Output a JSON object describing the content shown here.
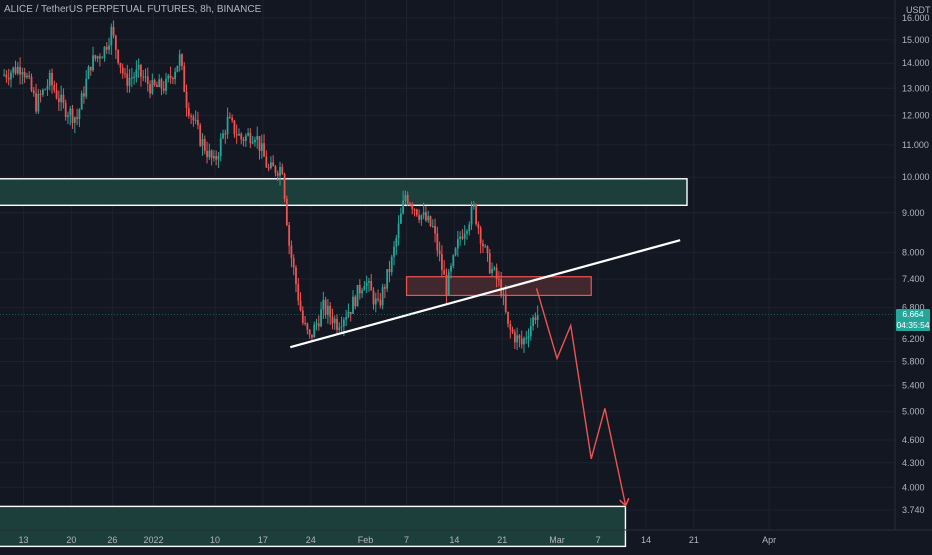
{
  "header": {
    "title": "ALICE / TetherUS PERPETUAL FUTURES, 8h, BINANCE",
    "currency": "USDT"
  },
  "last_price": {
    "value": "6.664",
    "countdown": "04:35:54",
    "level": 6.664
  },
  "colors": {
    "background": "#131722",
    "grid": "#1e222d",
    "up": "#26a69a",
    "down": "#ef5350",
    "zone_fill": "#1d3f3c",
    "zone_border": "#ffffff",
    "resistance_fill": "#4a2a30",
    "resistance_border": "#ef5350",
    "trendline": "#ffffff",
    "projection": "#ef5350"
  },
  "chart_data": {
    "type": "candlestick",
    "title": "ALICE / TetherUS PERPETUAL FUTURES, 8h, BINANCE",
    "y_scale": "log",
    "y_ticks": [
      "16.000",
      "15.000",
      "14.000",
      "13.000",
      "12.000",
      "11.000",
      "10.000",
      "9.000",
      "8.000",
      "7.400",
      "6.800",
      "6.200",
      "5.800",
      "5.400",
      "5.000",
      "4.600",
      "4.300",
      "4.000",
      "3.740"
    ],
    "x_ticks": [
      "13",
      "20",
      "26",
      "2022",
      "10",
      "17",
      "24",
      "Feb",
      "7",
      "14",
      "21",
      "Mar",
      "7",
      "14",
      "21",
      "Apr"
    ],
    "x_range": [
      "2021-12-10",
      "2022-04-04"
    ],
    "price_path": [
      [
        "2021-12-10",
        13.5
      ],
      [
        "2021-12-13",
        13.9
      ],
      [
        "2021-12-15",
        12.4
      ],
      [
        "2021-12-17",
        13.3
      ],
      [
        "2021-12-19",
        12.3
      ],
      [
        "2021-12-21",
        11.9
      ],
      [
        "2021-12-23",
        14.0
      ],
      [
        "2021-12-25",
        14.6
      ],
      [
        "2021-12-26",
        15.4
      ],
      [
        "2021-12-28",
        13.3
      ],
      [
        "2021-12-30",
        13.6
      ],
      [
        "2022-01-01",
        13.0
      ],
      [
        "2022-01-03",
        13.1
      ],
      [
        "2022-01-05",
        14.2
      ],
      [
        "2022-01-06",
        12.5
      ],
      [
        "2022-01-08",
        11.2
      ],
      [
        "2022-01-10",
        10.4
      ],
      [
        "2022-01-12",
        11.8
      ],
      [
        "2022-01-14",
        11.2
      ],
      [
        "2022-01-16",
        11.4
      ],
      [
        "2022-01-18",
        10.2
      ],
      [
        "2022-01-20",
        10.3
      ],
      [
        "2022-01-21",
        8.2
      ],
      [
        "2022-01-23",
        6.5
      ],
      [
        "2022-01-24",
        6.2
      ],
      [
        "2022-01-26",
        6.8
      ],
      [
        "2022-01-28",
        6.5
      ],
      [
        "2022-01-30",
        6.8
      ],
      [
        "2022-02-01",
        7.4
      ],
      [
        "2022-02-03",
        6.8
      ],
      [
        "2022-02-05",
        7.8
      ],
      [
        "2022-02-07",
        9.5
      ],
      [
        "2022-02-09",
        9.0
      ],
      [
        "2022-02-11",
        8.6
      ],
      [
        "2022-02-13",
        7.2
      ],
      [
        "2022-02-15",
        8.4
      ],
      [
        "2022-02-17",
        9.1
      ],
      [
        "2022-02-19",
        7.8
      ],
      [
        "2022-02-21",
        7.2
      ],
      [
        "2022-02-22",
        6.4
      ],
      [
        "2022-02-24",
        6.1
      ],
      [
        "2022-02-26",
        6.664
      ]
    ],
    "annotations": {
      "supply_zone": {
        "from": "2021-12-10",
        "to": "2022-03-20",
        "top": 9.95,
        "bottom": 9.2
      },
      "demand_zone": {
        "from": "2021-12-10",
        "to": "2022-03-11",
        "top": 3.78,
        "bottom": 3.6
      },
      "resistance_box": {
        "from": "2022-02-07",
        "to": "2022-03-06",
        "top": 7.45,
        "bottom": 7.05
      },
      "trendline": {
        "from": [
          "2022-01-21",
          6.05
        ],
        "to": [
          "2022-03-19",
          8.3
        ]
      },
      "projection_path": [
        [
          "2022-02-26",
          7.2
        ],
        [
          "2022-03-01",
          5.85
        ],
        [
          "2022-03-03",
          6.45
        ],
        [
          "2022-03-06",
          4.35
        ],
        [
          "2022-03-08",
          5.05
        ],
        [
          "2022-03-11",
          3.8
        ]
      ]
    },
    "grid": true,
    "legend": "none"
  }
}
